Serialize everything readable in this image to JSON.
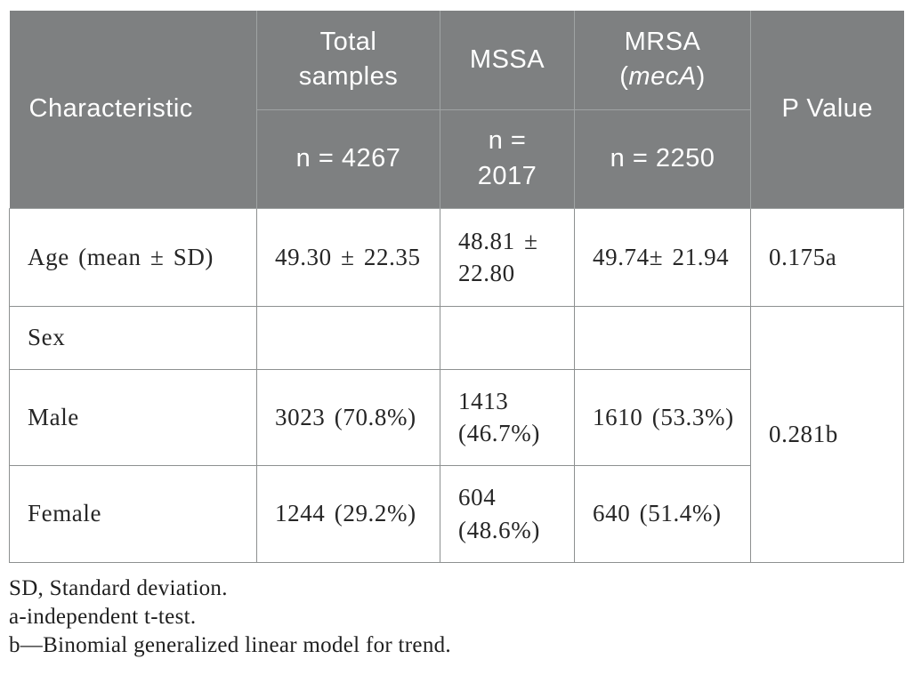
{
  "colors": {
    "header_bg": "#7e8081",
    "header_text": "#ffffff",
    "header_grid": "#9fa3a3",
    "body_grid": "#8d9090",
    "body_text": "#262626"
  },
  "table": {
    "header": {
      "characteristic": "Characteristic",
      "total_samples_label": "Total\nsamples",
      "total_samples_n": "n = 4267",
      "mssa_label": "MSSA",
      "mssa_n": "n =\n2017",
      "mrsa_label": "MRSA",
      "mrsa_gene_open": "(",
      "mrsa_gene": "mecA",
      "mrsa_gene_close": ")",
      "mrsa_n": "n = 2250",
      "p_value": "P Value"
    },
    "rows": [
      {
        "label": "Age (mean ± SD)",
        "total": "49.30 ± 22.35",
        "mssa": "48.81 ±\n22.80",
        "mrsa": "49.74± 21.94",
        "p": "0.175a"
      },
      {
        "label": "Sex",
        "total": "",
        "mssa": "",
        "mrsa": "",
        "p": "0.281b"
      },
      {
        "label": "Male",
        "total": "3023 (70.8%)",
        "mssa": "1413\n(46.7%)",
        "mrsa": "1610 (53.3%)"
      },
      {
        "label": "Female",
        "total": "1244 (29.2%)",
        "mssa": "604\n(48.6%)",
        "mrsa": "640 (51.4%)"
      }
    ]
  },
  "footnotes": [
    "SD, Standard deviation.",
    "a-independent t-test.",
    "b—Binomial generalized linear model for trend."
  ]
}
